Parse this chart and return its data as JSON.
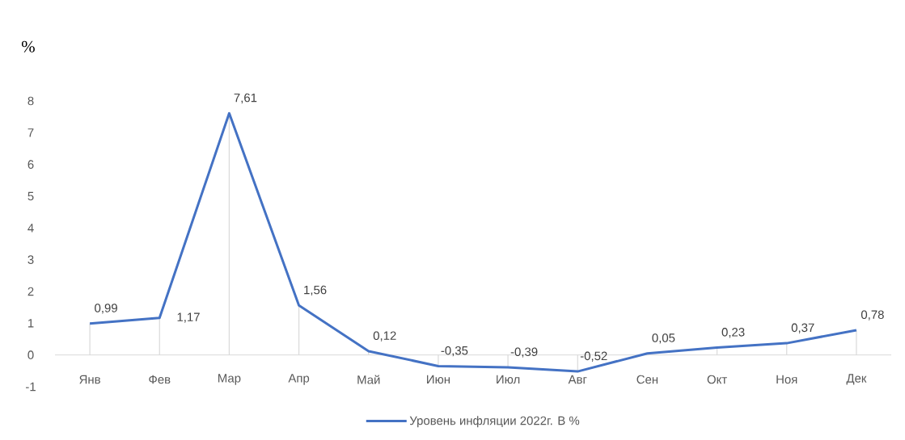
{
  "chart_data": {
    "type": "line",
    "ylabel": "%",
    "categories": [
      "Янв",
      "Фев",
      "Мар",
      "Апр",
      "Май",
      "Июн",
      "Июл",
      "Авг",
      "Сен",
      "Окт",
      "Ноя",
      "Дек"
    ],
    "series": [
      {
        "type": "bar",
        "color": "#d9d9d9",
        "values": [
          0.99,
          1.17,
          7.61,
          1.56,
          0.12,
          -0.35,
          -0.39,
          -0.52,
          null,
          0.23,
          0.37,
          0.78
        ]
      },
      {
        "name": "Уровень инфляции 2022г. В %",
        "color": "#4472c4",
        "values": [
          0.99,
          1.17,
          7.61,
          1.56,
          0.12,
          -0.35,
          -0.39,
          -0.52,
          0.05,
          0.23,
          0.37,
          0.78
        ],
        "value_labels": [
          "0,99",
          "1,17",
          "7,61",
          "1,56",
          "0,12",
          "-0,35",
          "-0,39",
          "-0,52",
          "0,05",
          "0,23",
          "0,37",
          "0,78"
        ]
      }
    ],
    "ylim": [
      -1,
      8
    ],
    "yticks": [
      -1,
      0,
      1,
      2,
      3,
      4,
      5,
      6,
      7,
      8
    ],
    "legend": "bottom"
  }
}
